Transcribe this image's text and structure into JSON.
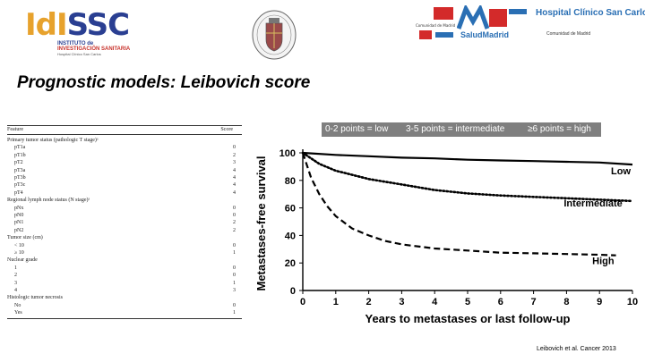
{
  "header": {
    "idissc": {
      "main_a": "IdI",
      "main_b": "SSC",
      "line1": "INSTITUTO de",
      "line2": "INVESTIGACIÓN SANITARIA",
      "line3": "Hospital Clínico San Carlos"
    },
    "hospital": {
      "name": "Hospital Clínico San Carlos",
      "region": "Comunidad de Madrid",
      "salud": "SaludMadrid"
    }
  },
  "slide": {
    "title": "Prognostic models: Leibovich score"
  },
  "table": {
    "header_feature": "Feature",
    "header_score": "Score",
    "rows": [
      {
        "feature": "Primary tumor status (pathologic T stage)ᵃ",
        "score": "",
        "indent": false
      },
      {
        "feature": "pT1a",
        "score": "0",
        "indent": true
      },
      {
        "feature": "pT1b",
        "score": "2",
        "indent": true
      },
      {
        "feature": "pT2",
        "score": "3",
        "indent": true
      },
      {
        "feature": "pT3a",
        "score": "4",
        "indent": true
      },
      {
        "feature": "pT3b",
        "score": "4",
        "indent": true
      },
      {
        "feature": "pT3c",
        "score": "4",
        "indent": true
      },
      {
        "feature": "pT4",
        "score": "4",
        "indent": true
      },
      {
        "feature": "Regional lymph node status (N stage)ᵃ",
        "score": "",
        "indent": false
      },
      {
        "feature": "pNx",
        "score": "0",
        "indent": true
      },
      {
        "feature": "pN0",
        "score": "0",
        "indent": true
      },
      {
        "feature": "pN1",
        "score": "2",
        "indent": true
      },
      {
        "feature": "pN2",
        "score": "2",
        "indent": true
      },
      {
        "feature": "Tumor size (cm)",
        "score": "",
        "indent": false
      },
      {
        "feature": "< 10",
        "score": "0",
        "indent": true
      },
      {
        "feature": "≥ 10",
        "score": "1",
        "indent": true
      },
      {
        "feature": "Nuclear grade",
        "score": "",
        "indent": false
      },
      {
        "feature": "1",
        "score": "0",
        "indent": true
      },
      {
        "feature": "2",
        "score": "0",
        "indent": true
      },
      {
        "feature": "3",
        "score": "1",
        "indent": true
      },
      {
        "feature": "4",
        "score": "3",
        "indent": true
      },
      {
        "feature": "Histologic tumor necrosis",
        "score": "",
        "indent": false
      },
      {
        "feature": "No",
        "score": "0",
        "indent": true
      },
      {
        "feature": "Yes",
        "score": "1",
        "indent": true
      }
    ]
  },
  "legend_bar": {
    "color": "#7f7f7f",
    "items": [
      "0-2 points = low",
      "3-5 points = intermediate",
      "≥6 points = high"
    ]
  },
  "chart_data": {
    "type": "line",
    "xlabel": "Years to metastases or last follow-up",
    "ylabel": "Metastases-free survival",
    "xlim": [
      0,
      10
    ],
    "ylim": [
      0,
      100
    ],
    "xticks": [
      0,
      1,
      2,
      3,
      4,
      5,
      6,
      7,
      8,
      9,
      10
    ],
    "yticks": [
      0,
      20,
      40,
      60,
      80,
      100
    ],
    "grid": false,
    "series": [
      {
        "name": "Low",
        "style": "solid",
        "x": [
          0,
          1,
          2,
          3,
          4,
          5,
          6,
          7,
          8,
          9,
          10
        ],
        "y": [
          100,
          98.5,
          97.5,
          96.5,
          96,
          95,
          94.5,
          94,
          93.5,
          93,
          91.5
        ]
      },
      {
        "name": "Intermediate",
        "style": "dotted",
        "x": [
          0,
          0.5,
          1,
          1.5,
          2,
          3,
          4,
          5,
          6,
          7,
          8,
          9,
          10
        ],
        "y": [
          100,
          92,
          87,
          84,
          81,
          77,
          73,
          70.5,
          69,
          68,
          67,
          66,
          65
        ]
      },
      {
        "name": "High",
        "style": "dashed",
        "x": [
          0,
          0.25,
          0.5,
          0.75,
          1,
          1.5,
          2,
          2.5,
          3,
          4,
          5,
          6,
          7,
          8,
          9,
          9.5
        ],
        "y": [
          100,
          82,
          70,
          61,
          54,
          45,
          40,
          36,
          33.5,
          30.5,
          29,
          27.5,
          27,
          26.5,
          26,
          25.5
        ]
      }
    ]
  },
  "citation": "Leibovich et al. Cancer 2013"
}
